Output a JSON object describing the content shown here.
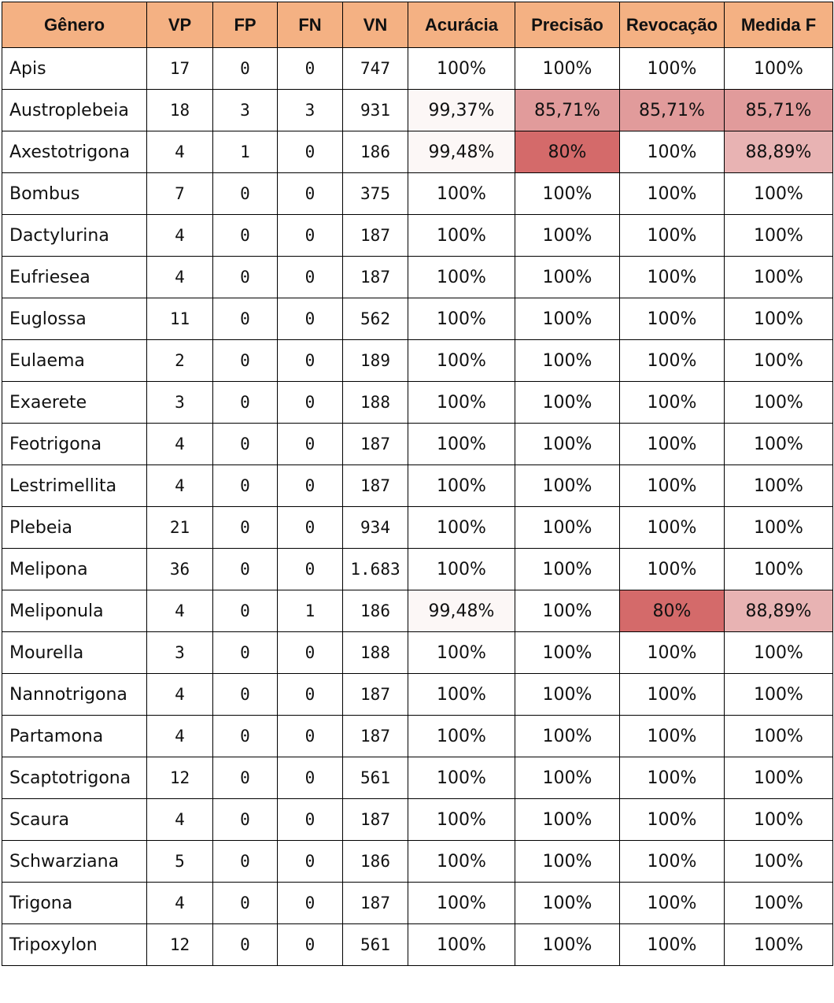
{
  "headers": [
    "Gênero",
    "VP",
    "FP",
    "FN",
    "VN",
    "Acurácia",
    "Precisão",
    "Revocação",
    "Medida F"
  ],
  "rows": [
    [
      "Apis",
      "17",
      "0",
      "0",
      "747",
      "100%",
      "100%",
      "100%",
      "100%"
    ],
    [
      "Austroplebeia",
      "18",
      "3",
      "3",
      "931",
      "99,37%",
      "85,71%",
      "85,71%",
      "85,71%"
    ],
    [
      "Axestotrigona",
      "4",
      "1",
      "0",
      "186",
      "99,48%",
      "80%",
      "100%",
      "88,89%"
    ],
    [
      "Bombus",
      "7",
      "0",
      "0",
      "375",
      "100%",
      "100%",
      "100%",
      "100%"
    ],
    [
      "Dactylurina",
      "4",
      "0",
      "0",
      "187",
      "100%",
      "100%",
      "100%",
      "100%"
    ],
    [
      "Eufriesea",
      "4",
      "0",
      "0",
      "187",
      "100%",
      "100%",
      "100%",
      "100%"
    ],
    [
      "Euglossa",
      "11",
      "0",
      "0",
      "562",
      "100%",
      "100%",
      "100%",
      "100%"
    ],
    [
      "Eulaema",
      "2",
      "0",
      "0",
      "189",
      "100%",
      "100%",
      "100%",
      "100%"
    ],
    [
      "Exaerete",
      "3",
      "0",
      "0",
      "188",
      "100%",
      "100%",
      "100%",
      "100%"
    ],
    [
      "Feotrigona",
      "4",
      "0",
      "0",
      "187",
      "100%",
      "100%",
      "100%",
      "100%"
    ],
    [
      "Lestrimellita",
      "4",
      "0",
      "0",
      "187",
      "100%",
      "100%",
      "100%",
      "100%"
    ],
    [
      "Plebeia",
      "21",
      "0",
      "0",
      "934",
      "100%",
      "100%",
      "100%",
      "100%"
    ],
    [
      "Melipona",
      "36",
      "0",
      "0",
      "1.683",
      "100%",
      "100%",
      "100%",
      "100%"
    ],
    [
      "Meliponula",
      "4",
      "0",
      "1",
      "186",
      "99,48%",
      "100%",
      "80%",
      "88,89%"
    ],
    [
      "Mourella",
      "3",
      "0",
      "0",
      "188",
      "100%",
      "100%",
      "100%",
      "100%"
    ],
    [
      "Nannotrigona",
      "4",
      "0",
      "0",
      "187",
      "100%",
      "100%",
      "100%",
      "100%"
    ],
    [
      "Partamona",
      "4",
      "0",
      "0",
      "187",
      "100%",
      "100%",
      "100%",
      "100%"
    ],
    [
      "Scaptotrigona",
      "12",
      "0",
      "0",
      "561",
      "100%",
      "100%",
      "100%",
      "100%"
    ],
    [
      "Scaura",
      "4",
      "0",
      "0",
      "187",
      "100%",
      "100%",
      "100%",
      "100%"
    ],
    [
      "Schwarziana",
      "5",
      "0",
      "0",
      "186",
      "100%",
      "100%",
      "100%",
      "100%"
    ],
    [
      "Trigona",
      "4",
      "0",
      "0",
      "187",
      "100%",
      "100%",
      "100%",
      "100%"
    ],
    [
      "Tripoxylon",
      "12",
      "0",
      "0",
      "561",
      "100%",
      "100%",
      "100%",
      "100%"
    ]
  ],
  "colors": {
    "header_fill": "#f4b183",
    "heat_faint": "#fcf7f6",
    "heat_light": "#e8b3b3",
    "heat_mid": "#e19b9b",
    "heat_strong": "#d46a6a"
  }
}
